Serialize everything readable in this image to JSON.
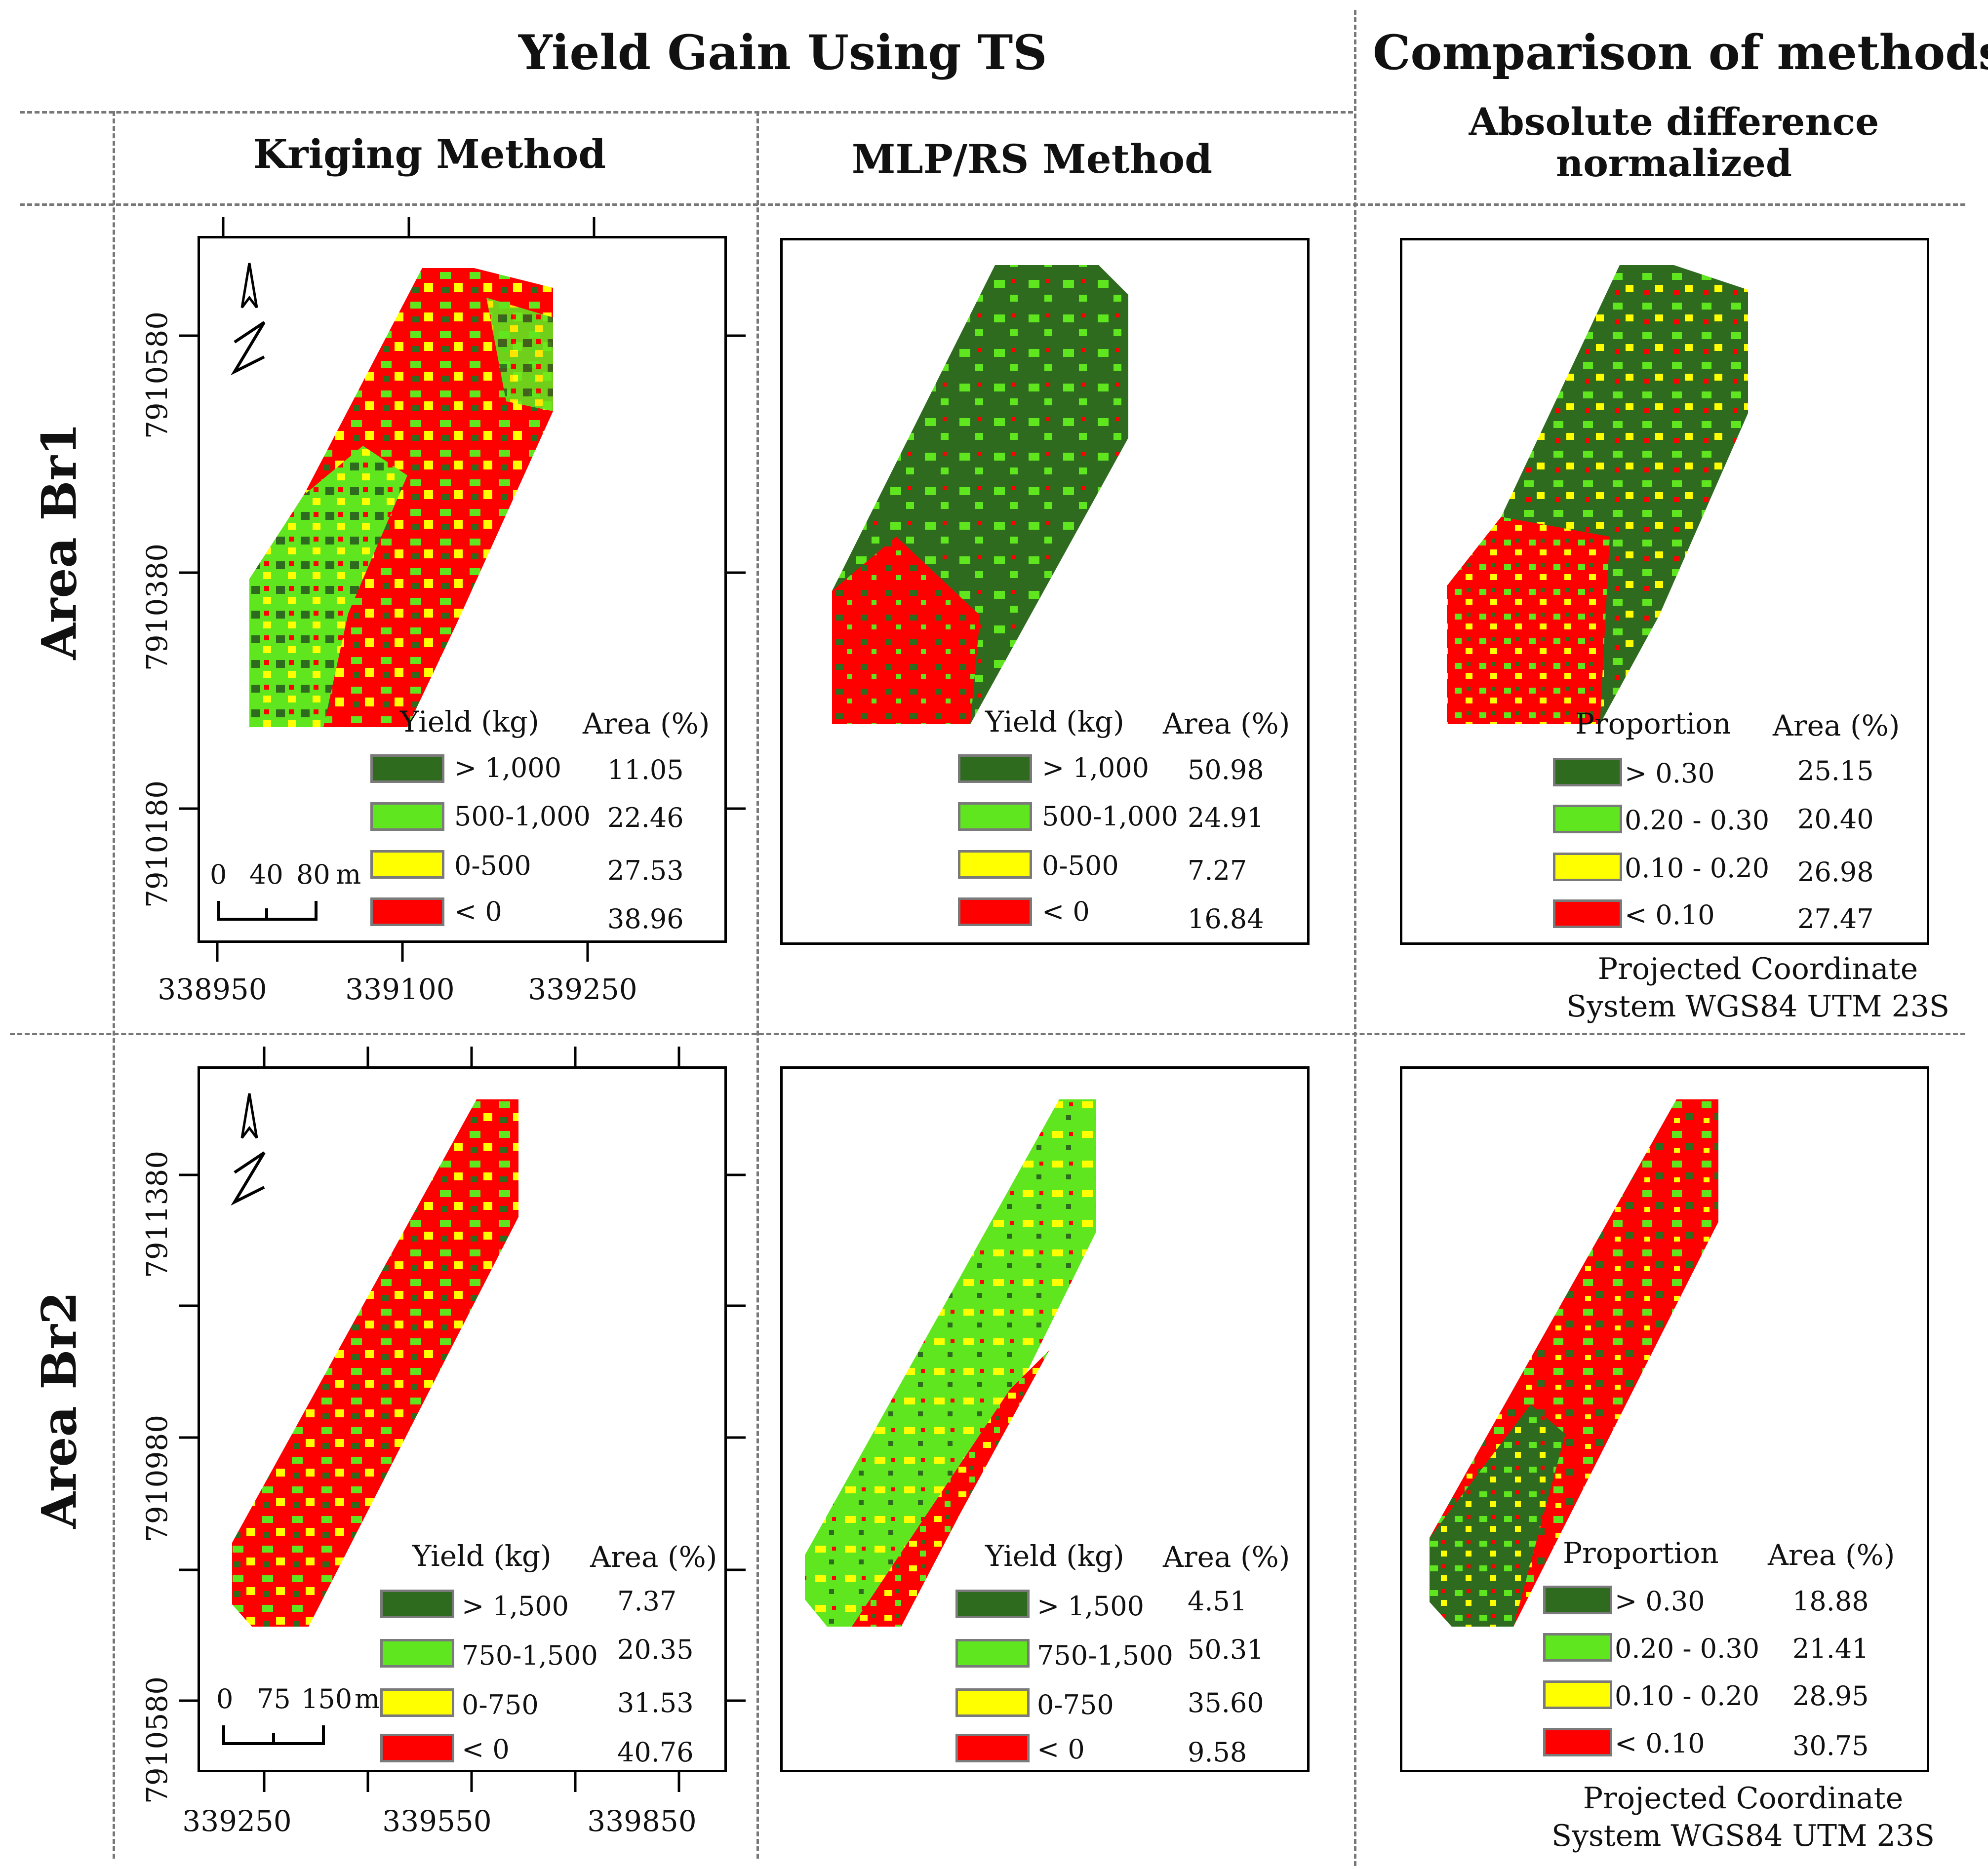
{
  "headers": {
    "left": "Yield Gain Using TS",
    "right": "Comparison of methods",
    "kriging": "Kriging Method",
    "mlp": "MLP/RS Method",
    "absdiff_line1": "Absolute difference",
    "absdiff_line2": "normalized"
  },
  "rows": {
    "br1": "Area Br1",
    "br2": "Area Br2"
  },
  "colors": {
    "dark_green": "#2e6b1f",
    "light_green": "#5fe61e",
    "yellow": "#ffff00",
    "red": "#ff0000"
  },
  "legend_headers": {
    "yield": "Yield (kg)",
    "area": "Area (%)",
    "proportion": "Proportion"
  },
  "br1": {
    "kriging": {
      "classes": [
        "> 1,000",
        "500-1,000",
        "0-500",
        "< 0"
      ],
      "areas": [
        "11.05",
        "22.46",
        "27.53",
        "38.96"
      ]
    },
    "mlp": {
      "classes": [
        "> 1,000",
        "500-1,000",
        "0-500",
        "< 0"
      ],
      "areas": [
        "50.98",
        "24.91",
        "7.27",
        "16.84"
      ]
    },
    "diff": {
      "classes": [
        "> 0.30",
        "0.20 - 0.30",
        "0.10 - 0.20",
        "< 0.10"
      ],
      "areas": [
        "25.15",
        "20.40",
        "26.98",
        "27.47"
      ]
    },
    "x_ticks": [
      "338950",
      "339100",
      "339250"
    ],
    "y_ticks": [
      "7910580",
      "7910380",
      "7910180"
    ],
    "scale": {
      "labels": [
        "0",
        "40",
        "80"
      ],
      "unit": "m"
    }
  },
  "br2": {
    "kriging": {
      "classes": [
        "> 1,500",
        "750-1,500",
        "0-750",
        "< 0"
      ],
      "areas": [
        "7.37",
        "20.35",
        "31.53",
        "40.76"
      ]
    },
    "mlp": {
      "classes": [
        "> 1,500",
        "750-1,500",
        "0-750",
        "< 0"
      ],
      "areas": [
        "4.51",
        "50.31",
        "35.60",
        "9.58"
      ]
    },
    "diff": {
      "classes": [
        "> 0.30",
        "0.20 - 0.30",
        "0.10 - 0.20",
        "< 0.10"
      ],
      "areas": [
        "18.88",
        "21.41",
        "28.95",
        "30.75"
      ]
    },
    "x_ticks": [
      "339250",
      "339550",
      "339850"
    ],
    "y_ticks": [
      "7911380",
      "7910980",
      "7910580"
    ],
    "scale": {
      "labels": [
        "0",
        "75",
        "150"
      ],
      "unit": "m"
    }
  },
  "projection": {
    "line1": "Projected Coordinate",
    "line2": "System WGS84 UTM 23S"
  }
}
